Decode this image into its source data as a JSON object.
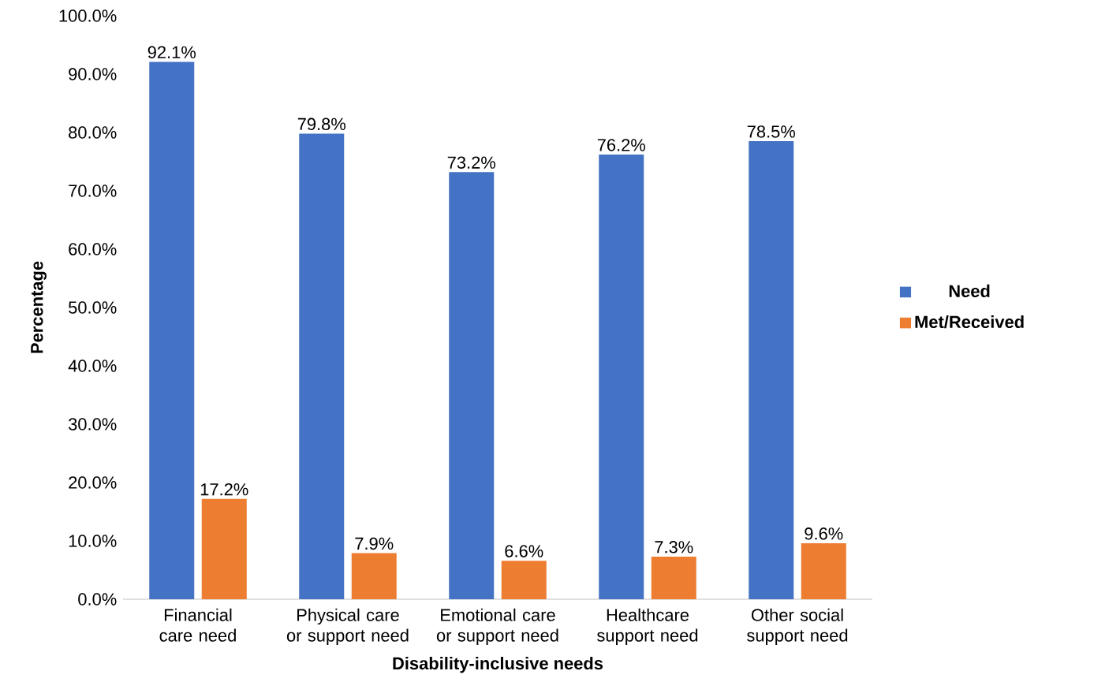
{
  "chart_data": {
    "type": "bar",
    "xlabel": "Disability-inclusive needs",
    "ylabel": "Percentage",
    "categories": [
      "Financial care need",
      "Physical care or support need",
      "Emotional care or support need",
      "Healthcare support need",
      "Other social support need"
    ],
    "series": [
      {
        "name": "Need",
        "color": "#4472c4",
        "values": [
          92.1,
          79.8,
          73.2,
          76.2,
          78.5
        ],
        "value_labels": [
          "92.1%",
          "79.8%",
          "73.2%",
          "76.2%",
          "78.5%"
        ]
      },
      {
        "name": "Met/Received",
        "color": "#ed7d31",
        "values": [
          17.2,
          7.9,
          6.6,
          7.3,
          9.6
        ],
        "value_labels": [
          "17.2%",
          "7.9%",
          "6.6%",
          "7.3%",
          "9.6%"
        ]
      }
    ],
    "ylim": [
      0,
      100
    ],
    "yticks": [
      {
        "value": 0,
        "label": "0.0%"
      },
      {
        "value": 10,
        "label": "10.0%"
      },
      {
        "value": 20,
        "label": "20.0%"
      },
      {
        "value": 30,
        "label": "30.0%"
      },
      {
        "value": 40,
        "label": "40.0%"
      },
      {
        "value": 50,
        "label": "50.0%"
      },
      {
        "value": 60,
        "label": "60.0%"
      },
      {
        "value": 70,
        "label": "70.0%"
      },
      {
        "value": 80,
        "label": "80.0%"
      },
      {
        "value": 90,
        "label": "90.0%"
      },
      {
        "value": 100,
        "label": "100.0%"
      }
    ],
    "grid": false,
    "legend": "right"
  }
}
